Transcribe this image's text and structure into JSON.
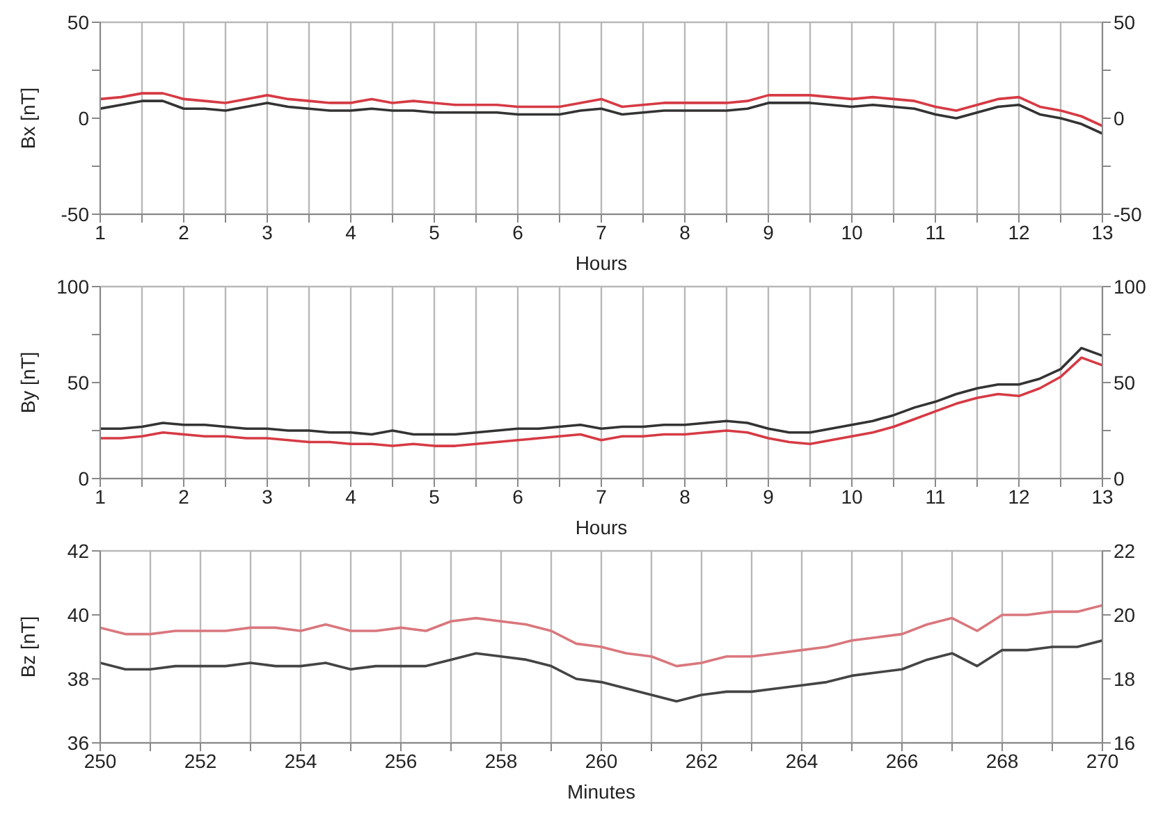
{
  "chart_data": [
    {
      "type": "line",
      "xlabel": "Hours",
      "ylabel": "Bx [nT]",
      "grid": true,
      "x": [
        1,
        1.25,
        1.5,
        1.75,
        2,
        2.25,
        2.5,
        2.75,
        3,
        3.25,
        3.5,
        3.75,
        4,
        4.25,
        4.5,
        4.75,
        5,
        5.25,
        5.5,
        5.75,
        6,
        6.25,
        6.5,
        6.75,
        7,
        7.25,
        7.5,
        7.75,
        8,
        8.25,
        8.5,
        8.75,
        9,
        9.25,
        9.5,
        9.75,
        10,
        10.25,
        10.5,
        10.75,
        11,
        11.25,
        11.5,
        11.75,
        12,
        12.25,
        12.5,
        12.75,
        13
      ],
      "series": [
        {
          "color": "#d63a44",
          "values": [
            10,
            11,
            13,
            13,
            10,
            9,
            8,
            10,
            12,
            10,
            9,
            8,
            8,
            10,
            8,
            9,
            8,
            7,
            7,
            7,
            6,
            6,
            6,
            8,
            10,
            6,
            7,
            8,
            8,
            8,
            8,
            9,
            12,
            12,
            12,
            11,
            10,
            11,
            10,
            9,
            6,
            4,
            7,
            10,
            11,
            6,
            4,
            1,
            -4
          ]
        },
        {
          "color": "#333333",
          "values": [
            5,
            7,
            9,
            9,
            5,
            5,
            4,
            6,
            8,
            6,
            5,
            4,
            4,
            5,
            4,
            4,
            3,
            3,
            3,
            3,
            2,
            2,
            2,
            4,
            5,
            2,
            3,
            4,
            4,
            4,
            4,
            5,
            8,
            8,
            8,
            7,
            6,
            7,
            6,
            5,
            2,
            0,
            3,
            6,
            7,
            2,
            0,
            -3,
            -8
          ]
        }
      ],
      "xlim": [
        1,
        13
      ],
      "xticks": [
        1,
        {
          "value": 1.5,
          "label": null
        },
        2,
        {
          "value": 2.5,
          "label": null
        },
        3,
        {
          "value": 3.5,
          "label": null
        },
        4,
        {
          "value": 4.5,
          "label": null
        },
        5,
        {
          "value": 5.5,
          "label": null
        },
        6,
        {
          "value": 6.5,
          "label": null
        },
        7,
        {
          "value": 7.5,
          "label": null
        },
        8,
        {
          "value": 8.5,
          "label": null
        },
        9,
        {
          "value": 9.5,
          "label": null
        },
        10,
        {
          "value": 10.5,
          "label": null
        },
        11,
        {
          "value": 11.5,
          "label": null
        },
        12,
        {
          "value": 12.5,
          "label": null
        },
        13
      ],
      "ylim": [
        -50,
        50
      ],
      "yticks": [
        -50,
        {
          "value": -25,
          "label": null
        },
        0,
        {
          "value": 25,
          "label": null
        },
        50
      ],
      "y2lim": [
        -50,
        50
      ],
      "y2ticks": [
        -50,
        {
          "value": -25,
          "label": null
        },
        0,
        {
          "value": 25,
          "label": null
        },
        50
      ]
    },
    {
      "type": "line",
      "xlabel": "Hours",
      "ylabel": "By [nT]",
      "grid": true,
      "x": [
        1,
        1.25,
        1.5,
        1.75,
        2,
        2.25,
        2.5,
        2.75,
        3,
        3.25,
        3.5,
        3.75,
        4,
        4.25,
        4.5,
        4.75,
        5,
        5.25,
        5.5,
        5.75,
        6,
        6.25,
        6.5,
        6.75,
        7,
        7.25,
        7.5,
        7.75,
        8,
        8.25,
        8.5,
        8.75,
        9,
        9.25,
        9.5,
        9.75,
        10,
        10.25,
        10.5,
        10.75,
        11,
        11.25,
        11.5,
        11.75,
        12,
        12.25,
        12.5,
        12.75,
        13
      ],
      "series": [
        {
          "color": "#333333",
          "values": [
            26,
            26,
            27,
            29,
            28,
            28,
            27,
            26,
            26,
            25,
            25,
            24,
            24,
            23,
            25,
            23,
            23,
            23,
            24,
            25,
            26,
            26,
            27,
            28,
            26,
            27,
            27,
            28,
            28,
            29,
            30,
            29,
            26,
            24,
            24,
            26,
            28,
            30,
            33,
            37,
            40,
            44,
            47,
            49,
            49,
            52,
            57,
            68,
            64
          ]
        },
        {
          "color": "#d63a44",
          "values": [
            21,
            21,
            22,
            24,
            23,
            22,
            22,
            21,
            21,
            20,
            19,
            19,
            18,
            18,
            17,
            18,
            17,
            17,
            18,
            19,
            20,
            21,
            22,
            23,
            20,
            22,
            22,
            23,
            23,
            24,
            25,
            24,
            21,
            19,
            18,
            20,
            22,
            24,
            27,
            31,
            35,
            39,
            42,
            44,
            43,
            47,
            53,
            63,
            59
          ]
        }
      ],
      "xlim": [
        1,
        13
      ],
      "xticks": [
        1,
        {
          "value": 1.5,
          "label": null
        },
        2,
        {
          "value": 2.5,
          "label": null
        },
        3,
        {
          "value": 3.5,
          "label": null
        },
        4,
        {
          "value": 4.5,
          "label": null
        },
        5,
        {
          "value": 5.5,
          "label": null
        },
        6,
        {
          "value": 6.5,
          "label": null
        },
        7,
        {
          "value": 7.5,
          "label": null
        },
        8,
        {
          "value": 8.5,
          "label": null
        },
        9,
        {
          "value": 9.5,
          "label": null
        },
        10,
        {
          "value": 10.5,
          "label": null
        },
        11,
        {
          "value": 11.5,
          "label": null
        },
        12,
        {
          "value": 12.5,
          "label": null
        },
        13
      ],
      "ylim": [
        0,
        100
      ],
      "yticks": [
        0,
        {
          "value": 25,
          "label": null
        },
        50,
        {
          "value": 75,
          "label": null
        },
        100
      ],
      "y2lim": [
        0,
        100
      ],
      "y2ticks": [
        0,
        {
          "value": 25,
          "label": null
        },
        50,
        {
          "value": 75,
          "label": null
        },
        100
      ]
    },
    {
      "type": "line",
      "xlabel": "Minutes",
      "ylabel": "Bz [nT]",
      "grid": true,
      "x": [
        250,
        250.5,
        251,
        251.5,
        252,
        252.5,
        253,
        253.5,
        254,
        254.5,
        255,
        255.5,
        256,
        256.5,
        257,
        257.5,
        258,
        258.5,
        259,
        259.5,
        260,
        260.5,
        261,
        261.5,
        262,
        262.5,
        263,
        263.5,
        264,
        264.5,
        265,
        265.5,
        266,
        266.5,
        267,
        267.5,
        268,
        268.5,
        269,
        269.5,
        270
      ],
      "series": [
        {
          "color": "#d9777d",
          "values": [
            39.6,
            39.4,
            39.4,
            39.5,
            39.5,
            39.5,
            39.6,
            39.6,
            39.5,
            39.7,
            39.5,
            39.5,
            39.6,
            39.5,
            39.8,
            39.9,
            39.8,
            39.7,
            39.5,
            39.1,
            39.0,
            38.8,
            38.7,
            38.4,
            38.5,
            38.7,
            38.7,
            38.8,
            38.9,
            39.0,
            39.2,
            39.3,
            39.4,
            39.7,
            39.9,
            39.5,
            40.0,
            40.0,
            40.1,
            40.1,
            40.3
          ]
        },
        {
          "color": "#444444",
          "axis": "y2",
          "values": [
            18.5,
            18.3,
            18.3,
            18.4,
            18.4,
            18.4,
            18.5,
            18.4,
            18.4,
            18.5,
            18.3,
            18.4,
            18.4,
            18.4,
            18.6,
            18.8,
            18.7,
            18.6,
            18.4,
            18.0,
            17.9,
            17.7,
            17.5,
            17.3,
            17.5,
            17.6,
            17.6,
            17.7,
            17.8,
            17.9,
            18.1,
            18.2,
            18.3,
            18.6,
            18.8,
            18.4,
            18.9,
            18.9,
            19.0,
            19.0,
            19.2
          ]
        }
      ],
      "xlim": [
        250,
        270
      ],
      "xticks": [
        250,
        {
          "value": 251,
          "label": null
        },
        252,
        {
          "value": 253,
          "label": null
        },
        254,
        {
          "value": 255,
          "label": null
        },
        256,
        {
          "value": 257,
          "label": null
        },
        258,
        {
          "value": 259,
          "label": null
        },
        260,
        {
          "value": 261,
          "label": null
        },
        262,
        {
          "value": 263,
          "label": null
        },
        264,
        {
          "value": 265,
          "label": null
        },
        266,
        {
          "value": 267,
          "label": null
        },
        268,
        {
          "value": 269,
          "label": null
        },
        270
      ],
      "ylim": [
        36,
        42
      ],
      "yticks": [
        36,
        38,
        40,
        42
      ],
      "y2lim": [
        16,
        22
      ],
      "y2ticks": [
        16,
        18,
        20,
        22
      ]
    }
  ]
}
